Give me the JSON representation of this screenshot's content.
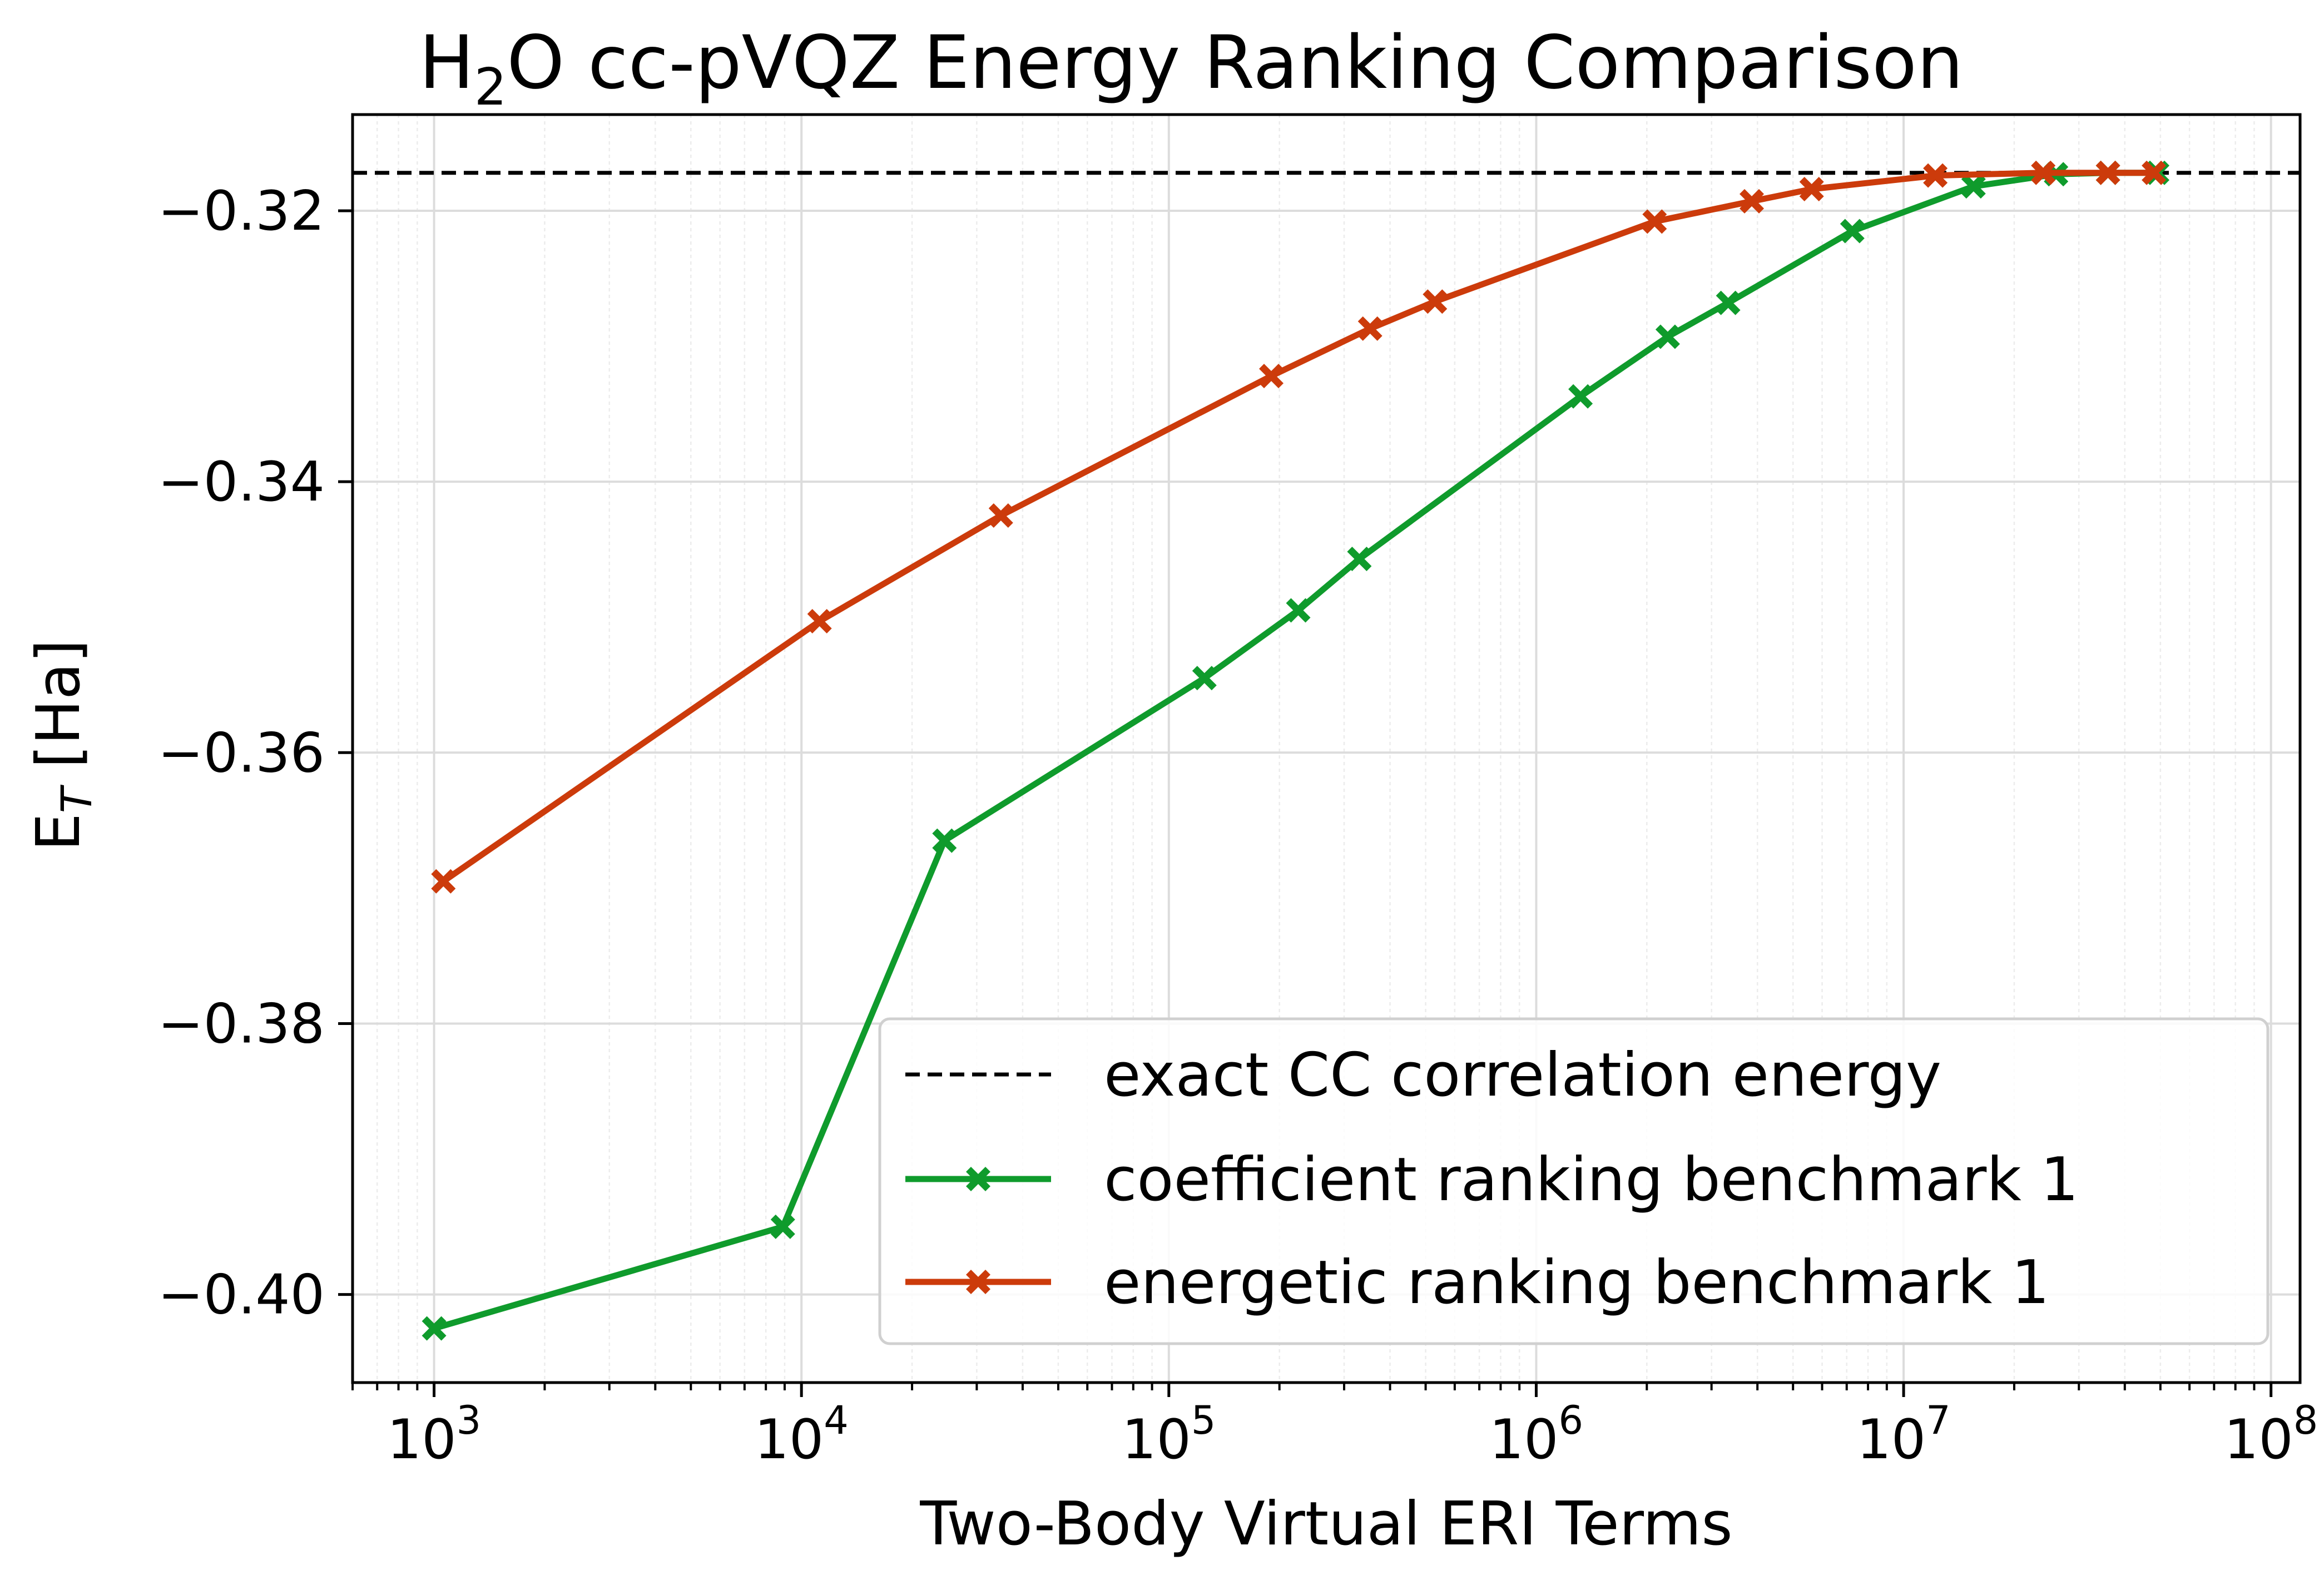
{
  "chart_data": {
    "type": "line",
    "title_main": "H",
    "title_sub": "2",
    "title_rest": "O cc-pVQZ Energy Ranking Comparison",
    "xlabel": "Two-Body Virtual ERI Terms",
    "ylabel_main": "E",
    "ylabel_sub": "T",
    "ylabel_rest": " [Ha]",
    "xscale": "log",
    "xlim": [
      600,
      120000000
    ],
    "ylim": [
      -0.4065,
      -0.3129
    ],
    "grid": true,
    "legend_position": "lower-right",
    "x_ticks": [
      {
        "value": 1000,
        "base": "10",
        "exp": "3"
      },
      {
        "value": 10000,
        "base": "10",
        "exp": "4"
      },
      {
        "value": 100000,
        "base": "10",
        "exp": "5"
      },
      {
        "value": 1000000,
        "base": "10",
        "exp": "6"
      },
      {
        "value": 10000000,
        "base": "10",
        "exp": "7"
      },
      {
        "value": 100000000,
        "base": "10",
        "exp": "8"
      }
    ],
    "y_ticks": [
      {
        "value": -0.32,
        "label": "−0.32"
      },
      {
        "value": -0.34,
        "label": "−0.34"
      },
      {
        "value": -0.36,
        "label": "−0.36"
      },
      {
        "value": -0.38,
        "label": "−0.38"
      },
      {
        "value": -0.4,
        "label": "−0.40"
      }
    ],
    "reference_line": {
      "name": "exact CC correlation energy",
      "y": -0.3172,
      "color": "#000000"
    },
    "series": [
      {
        "name": "coefficient ranking benchmark 1",
        "color": "#0f9b2c",
        "x": [
          1000,
          8900,
          24500,
          125000,
          225000,
          330000,
          1320000,
          2280000,
          3330000,
          7250000,
          15500000,
          26000000,
          36000000,
          49000000
        ],
        "y": [
          -0.4025,
          -0.395,
          -0.3665,
          -0.3545,
          -0.3495,
          -0.3457,
          -0.3337,
          -0.3293,
          -0.3268,
          -0.3215,
          -0.3182,
          -0.3173,
          -0.3172,
          -0.3172
        ]
      },
      {
        "name": "energetic ranking benchmark 1",
        "color": "#cc3b0b",
        "x": [
          1060,
          11200,
          34900,
          190000,
          353000,
          530000,
          2100000,
          3860000,
          5620000,
          12200000,
          24000000,
          36000000,
          48000000
        ],
        "y": [
          -0.3695,
          -0.3503,
          -0.3425,
          -0.3322,
          -0.3287,
          -0.3267,
          -0.3208,
          -0.3193,
          -0.3184,
          -0.3174,
          -0.3172,
          -0.3172,
          -0.3172
        ]
      }
    ]
  }
}
